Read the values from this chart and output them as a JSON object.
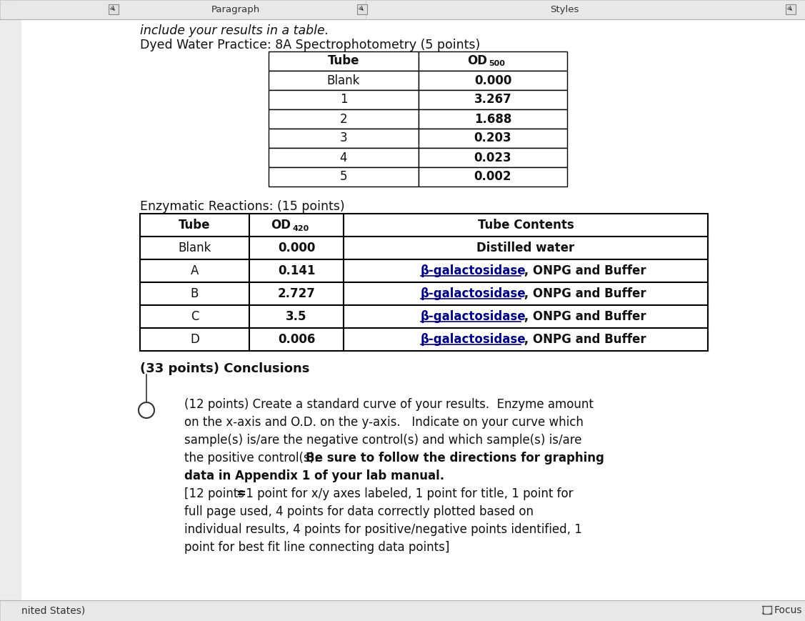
{
  "bg_color": "#ececec",
  "page_bg": "#ffffff",
  "top_bar_bg": "#e8e8e8",
  "top_bar_border": "#c8c8c8",
  "top_text": "include your results in a table.",
  "title1": "Dyed Water Practice: 8A Spectrophotometry (5 points)",
  "table1_headers": [
    "Tube",
    "OD500"
  ],
  "table1_rows": [
    [
      "Blank",
      "0.000"
    ],
    [
      "1",
      "3.267"
    ],
    [
      "2",
      "1.688"
    ],
    [
      "3",
      "0.203"
    ],
    [
      "4",
      "0.023"
    ],
    [
      "5",
      "0.002"
    ]
  ],
  "title2": "Enzymatic Reactions: (15 points)",
  "table2_headers": [
    "Tube",
    "OD420",
    "Tube Contents"
  ],
  "table2_rows": [
    [
      "Blank",
      "0.000",
      "Distilled water"
    ],
    [
      "A",
      "0.141",
      "B-galactosidase , ONPG and Buffer"
    ],
    [
      "B",
      "2.727",
      "B-galactosidase , ONPG and Buffer"
    ],
    [
      "C",
      "3.5",
      "B-galactosidase , ONPG and Buffer"
    ],
    [
      "D",
      "0.006",
      "B-galactosidase , ONPG and Buffer"
    ]
  ],
  "conclusions_title": "(33 points) Conclusions",
  "para_lines": [
    "(12 points) Create a standard curve of your results.  Enzyme amount",
    "on the x-axis and O.D. on the y-axis.   Indicate on your curve which",
    "sample(s) is/are the negative control(s) and which sample(s) is/are",
    "the positive control(s).  Be sure to follow the directions for graphing",
    "data in Appendix 1 of your lab manual.",
    "[12 points = 1 point for x/y axes labeled, 1 point for title, 1 point for",
    "full page used, 4 points for data correctly plotted based on",
    "individual results, 4 points for positive/negative points identified, 1",
    "point for best fit line connecting data points]"
  ],
  "footer_left": "nited States)",
  "footer_right": "Focus"
}
